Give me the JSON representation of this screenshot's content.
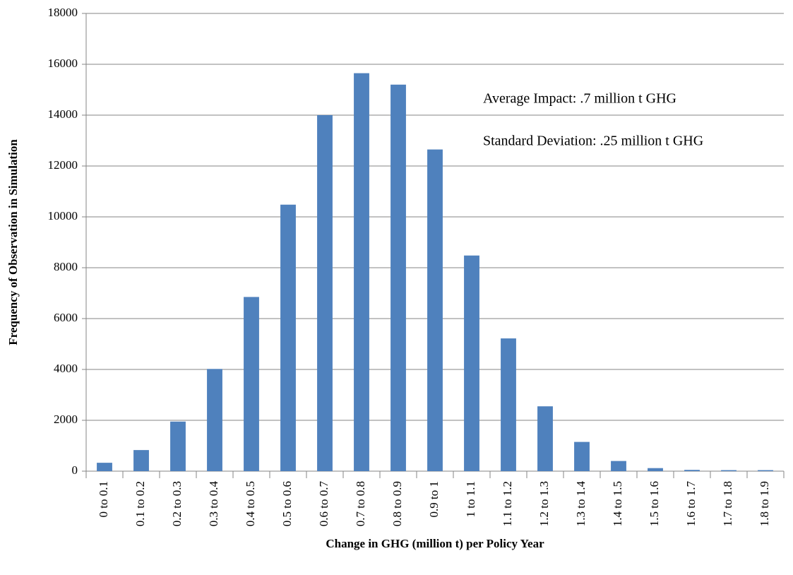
{
  "chart_data": {
    "type": "bar",
    "annotations": [
      "Average Impact: .7 million t GHG",
      "Standard Deviation: .25 million t GHG"
    ],
    "x_label": "Change in GHG (million t) per Policy Year",
    "y_label": "Frequency of Observation in Simulation",
    "categories": [
      "0 to 0.1",
      "0.1 to 0.2",
      "0.2 to 0.3",
      "0.3 to 0.4",
      "0.4 to 0.5",
      "0.5 to 0.6",
      "0.6 to 0.7",
      "0.7 to 0.8",
      "0.8 to 0.9",
      "0.9 to 1",
      "1 to 1.1",
      "1.1 to 1.2",
      "1.2 to 1.3",
      "1.3 to 1.4",
      "1.4 to 1.5",
      "1.5 to 1.6",
      "1.6 to 1.7",
      "1.7 to 1.8",
      "1.8 to 1.9"
    ],
    "values": [
      330,
      830,
      1950,
      4020,
      6850,
      10480,
      14000,
      15650,
      15200,
      12650,
      8480,
      5220,
      2550,
      1150,
      400,
      120,
      50,
      40,
      40
    ],
    "color": "#4f81bd",
    "ylim": [
      0,
      18000
    ],
    "yticks": [
      0,
      2000,
      4000,
      6000,
      8000,
      10000,
      12000,
      14000,
      16000,
      18000
    ],
    "grid": true
  }
}
